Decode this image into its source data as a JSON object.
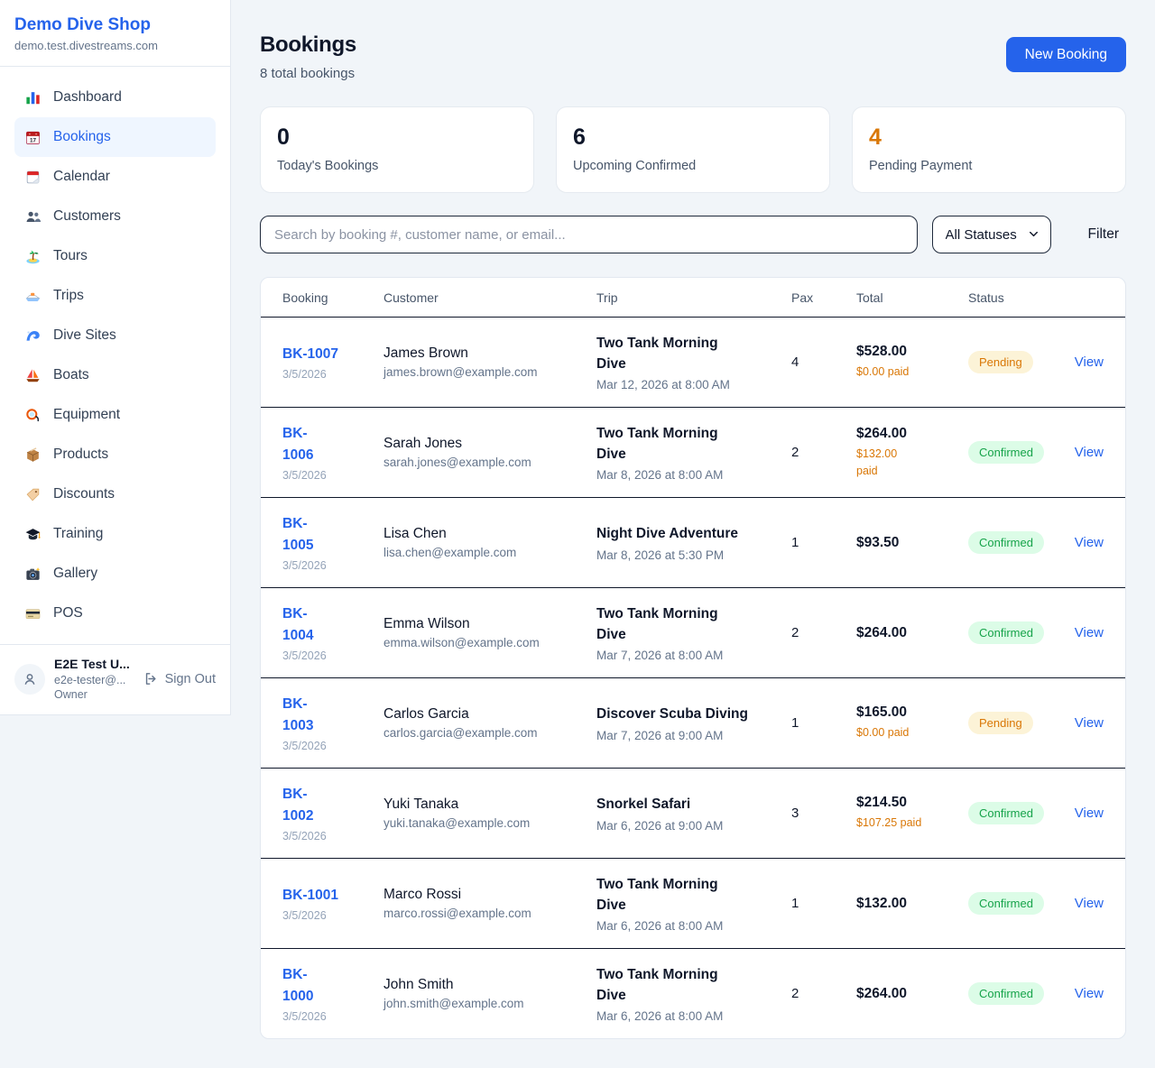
{
  "brand": {
    "name": "Demo Dive Shop",
    "domain": "demo.test.divestreams.com"
  },
  "colors": {
    "accent": "#2563eb",
    "pending": "#d97706",
    "confirmed": "#16a34a"
  },
  "sidebar": {
    "items": [
      {
        "label": "Dashboard",
        "icon": "bar-chart-icon"
      },
      {
        "label": "Bookings",
        "icon": "bookings-calendar-icon",
        "active": true
      },
      {
        "label": "Calendar",
        "icon": "calendar-icon"
      },
      {
        "label": "Customers",
        "icon": "users-icon"
      },
      {
        "label": "Tours",
        "icon": "island-icon"
      },
      {
        "label": "Trips",
        "icon": "speedboat-icon"
      },
      {
        "label": "Dive Sites",
        "icon": "wave-icon"
      },
      {
        "label": "Boats",
        "icon": "sailboat-icon"
      },
      {
        "label": "Equipment",
        "icon": "diving-mask-icon"
      },
      {
        "label": "Products",
        "icon": "package-icon"
      },
      {
        "label": "Discounts",
        "icon": "tag-icon"
      },
      {
        "label": "Training",
        "icon": "graduation-cap-icon"
      },
      {
        "label": "Gallery",
        "icon": "camera-icon"
      },
      {
        "label": "POS",
        "icon": "credit-card-icon"
      }
    ]
  },
  "user": {
    "name": "E2E Test U...",
    "email": "e2e-tester@...",
    "role": "Owner",
    "sign_out_label": "Sign Out",
    "avatar_icon": "person-icon",
    "sign_out_icon": "logout-icon"
  },
  "header": {
    "title": "Bookings",
    "subtitle": "8 total bookings",
    "new_booking_label": "New Booking"
  },
  "stats": [
    {
      "value": "0",
      "label": "Today's Bookings"
    },
    {
      "value": "6",
      "label": "Upcoming Confirmed"
    },
    {
      "value": "4",
      "label": "Pending Payment",
      "tone": "orange"
    }
  ],
  "filters": {
    "search_placeholder": "Search by booking #, customer name, or email...",
    "status_selected": "All Statuses",
    "status_chevron_icon": "chevron-down-icon",
    "filter_label": "Filter"
  },
  "table": {
    "columns": [
      "Booking",
      "Customer",
      "Trip",
      "Pax",
      "Total",
      "Status"
    ],
    "view_label": "View",
    "rows": [
      {
        "id": "BK-1007",
        "date": "3/5/2026",
        "customer": "James Brown",
        "email": "james.brown@example.com",
        "trip": "Two Tank Morning Dive",
        "trip_time": "Mar 12, 2026 at 8:00 AM",
        "pax": "4",
        "total": "$528.00",
        "paid": "$0.00 paid",
        "status": "Pending"
      },
      {
        "id": "BK-\n1006",
        "date": "3/5/2026",
        "customer": "Sarah Jones",
        "email": "sarah.jones@example.com",
        "trip": "Two Tank Morning Dive",
        "trip_time": "Mar 8, 2026 at 8:00 AM",
        "pax": "2",
        "total": "$264.00",
        "paid": "$132.00\npaid",
        "status": "Confirmed"
      },
      {
        "id": "BK-\n1005",
        "date": "3/5/2026",
        "customer": "Lisa Chen",
        "email": "lisa.chen@example.com",
        "trip": "Night Dive Adventure",
        "trip_time": "Mar 8, 2026 at 5:30 PM",
        "pax": "1",
        "total": "$93.50",
        "paid": null,
        "status": "Confirmed"
      },
      {
        "id": "BK-\n1004",
        "date": "3/5/2026",
        "customer": "Emma Wilson",
        "email": "emma.wilson@example.com",
        "trip": "Two Tank Morning Dive",
        "trip_time": "Mar 7, 2026 at 8:00 AM",
        "pax": "2",
        "total": "$264.00",
        "paid": null,
        "status": "Confirmed"
      },
      {
        "id": "BK-\n1003",
        "date": "3/5/2026",
        "customer": "Carlos Garcia",
        "email": "carlos.garcia@example.com",
        "trip": "Discover Scuba Diving",
        "trip_time": "Mar 7, 2026 at 9:00 AM",
        "pax": "1",
        "total": "$165.00",
        "paid": "$0.00 paid",
        "status": "Pending"
      },
      {
        "id": "BK-\n1002",
        "date": "3/5/2026",
        "customer": "Yuki Tanaka",
        "email": "yuki.tanaka@example.com",
        "trip": "Snorkel Safari",
        "trip_time": "Mar 6, 2026 at 9:00 AM",
        "pax": "3",
        "total": "$214.50",
        "paid": "$107.25 paid",
        "status": "Confirmed"
      },
      {
        "id": "BK-1001",
        "date": "3/5/2026",
        "customer": "Marco Rossi",
        "email": "marco.rossi@example.com",
        "trip": "Two Tank Morning Dive",
        "trip_time": "Mar 6, 2026 at 8:00 AM",
        "pax": "1",
        "total": "$132.00",
        "paid": null,
        "status": "Confirmed"
      },
      {
        "id": "BK-\n1000",
        "date": "3/5/2026",
        "customer": "John Smith",
        "email": "john.smith@example.com",
        "trip": "Two Tank Morning Dive",
        "trip_time": "Mar 6, 2026 at 8:00 AM",
        "pax": "2",
        "total": "$264.00",
        "paid": null,
        "status": "Confirmed"
      }
    ]
  }
}
